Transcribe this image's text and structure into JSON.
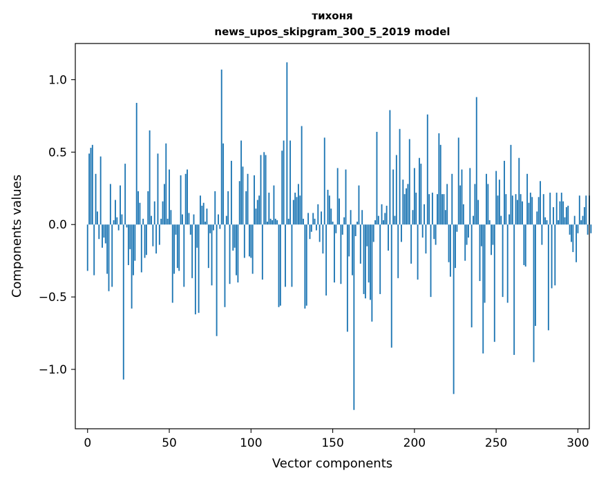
{
  "chart_data": {
    "type": "bar",
    "title_line1": "тихоня",
    "title_line2": "news_upos_skipgram_300_5_2019 model",
    "xlabel": "Vector components",
    "ylabel": "Components values",
    "xlim": [
      -7.5,
      307
    ],
    "ylim": [
      -1.41,
      1.25
    ],
    "xticks": [
      0,
      50,
      100,
      150,
      200,
      250,
      300
    ],
    "xtick_labels": [
      "0",
      "50",
      "100",
      "150",
      "200",
      "250",
      "300"
    ],
    "yticks": [
      -1.0,
      -0.5,
      0.0,
      0.5,
      1.0
    ],
    "ytick_labels": [
      "−1.0",
      "−0.5",
      "0.0",
      "0.5",
      "1.0"
    ],
    "bar_color": "#1f77b4",
    "grid": false,
    "values": [
      -0.32,
      0.49,
      0.53,
      0.55,
      -0.35,
      0.35,
      0.09,
      -0.1,
      0.47,
      -0.16,
      -0.09,
      -0.13,
      -0.34,
      -0.46,
      0.28,
      -0.43,
      0.03,
      0.17,
      0.05,
      -0.04,
      0.27,
      0.07,
      -1.07,
      0.42,
      -0.02,
      -0.28,
      -0.17,
      -0.58,
      -0.35,
      -0.25,
      0.84,
      0.23,
      0.15,
      -0.33,
      0.04,
      -0.23,
      -0.21,
      0.23,
      0.65,
      0.06,
      -0.15,
      0.16,
      -0.2,
      0.49,
      -0.14,
      0.04,
      0.16,
      0.28,
      0.56,
      0.04,
      0.38,
      0.1,
      -0.54,
      -0.34,
      -0.07,
      -0.3,
      -0.32,
      0.34,
      0.07,
      -0.43,
      0.35,
      0.38,
      0.08,
      -0.07,
      -0.37,
      0.07,
      -0.62,
      -0.16,
      -0.61,
      0.2,
      0.13,
      0.15,
      0.02,
      0.11,
      -0.3,
      -0.06,
      -0.42,
      -0.04,
      0.23,
      -0.77,
      0.07,
      -0.03,
      1.07,
      0.56,
      -0.57,
      0.06,
      0.23,
      -0.41,
      0.44,
      -0.18,
      -0.16,
      -0.35,
      -0.4,
      0.3,
      0.58,
      0.4,
      -0.23,
      0.23,
      0.35,
      -0.22,
      -0.23,
      -0.34,
      0.34,
      0.11,
      0.17,
      0.2,
      0.48,
      -0.38,
      0.5,
      0.48,
      0.02,
      0.22,
      0.04,
      0.03,
      0.27,
      0.04,
      0.03,
      -0.57,
      -0.56,
      0.51,
      0.58,
      -0.43,
      1.12,
      0.04,
      0.58,
      -0.43,
      0.17,
      0.22,
      0.19,
      0.28,
      0.2,
      0.68,
      0.04,
      -0.58,
      -0.56,
      0.08,
      -0.1,
      -0.05,
      0.08,
      0.04,
      -0.04,
      0.14,
      -0.12,
      0.09,
      -0.2,
      0.6,
      -0.49,
      0.24,
      0.2,
      0.11,
      0.02,
      -0.4,
      -0.06,
      0.39,
      0.18,
      -0.41,
      -0.07,
      0.05,
      0.38,
      -0.74,
      -0.22,
      0.1,
      -0.35,
      -1.28,
      -0.08,
      0.02,
      0.27,
      -0.27,
      0.1,
      -0.48,
      -0.51,
      -0.15,
      -0.4,
      -0.52,
      -0.67,
      -0.12,
      0.03,
      0.64,
      0.06,
      -0.48,
      0.14,
      0.03,
      0.08,
      0.13,
      -0.18,
      0.79,
      -0.85,
      0.38,
      0.06,
      0.48,
      -0.37,
      0.66,
      -0.12,
      0.31,
      0.21,
      0.25,
      0.28,
      0.59,
      -0.27,
      0.1,
      0.39,
      0.22,
      -0.38,
      0.46,
      0.42,
      -0.09,
      0.14,
      -0.2,
      0.76,
      0.21,
      -0.5,
      0.22,
      -0.1,
      -0.14,
      0.21,
      0.63,
      0.55,
      0.21,
      0.21,
      0.1,
      0.28,
      -0.26,
      -0.36,
      0.35,
      -1.17,
      -0.3,
      -0.05,
      0.6,
      0.27,
      0.38,
      0.14,
      -0.25,
      -0.14,
      -0.09,
      0.39,
      -0.71,
      0.06,
      0.28,
      0.88,
      0.17,
      -0.39,
      -0.15,
      -0.89,
      -0.54,
      0.35,
      0.28,
      0.03,
      -0.21,
      -0.14,
      -0.81,
      0.37,
      0.2,
      0.31,
      0.06,
      -0.5,
      0.44,
      0.21,
      -0.54,
      0.07,
      0.55,
      0.2,
      -0.9,
      0.21,
      0.17,
      0.46,
      0.21,
      0.16,
      -0.28,
      -0.29,
      0.35,
      0.15,
      0.22,
      0.19,
      -0.95,
      -0.7,
      0.09,
      0.19,
      0.3,
      -0.14,
      0.21,
      0.05,
      0.03,
      -0.73,
      0.22,
      -0.44,
      0.12,
      -0.42,
      0.22,
      0.03,
      0.16,
      0.22,
      0.16,
      0.05,
      0.12,
      0.13,
      -0.07,
      -0.12,
      -0.19,
      0.06,
      -0.26,
      -0.06,
      0.2,
      0.03,
      0.06,
      0.12,
      0.2,
      -0.07,
      0.2,
      -0.06
    ]
  }
}
